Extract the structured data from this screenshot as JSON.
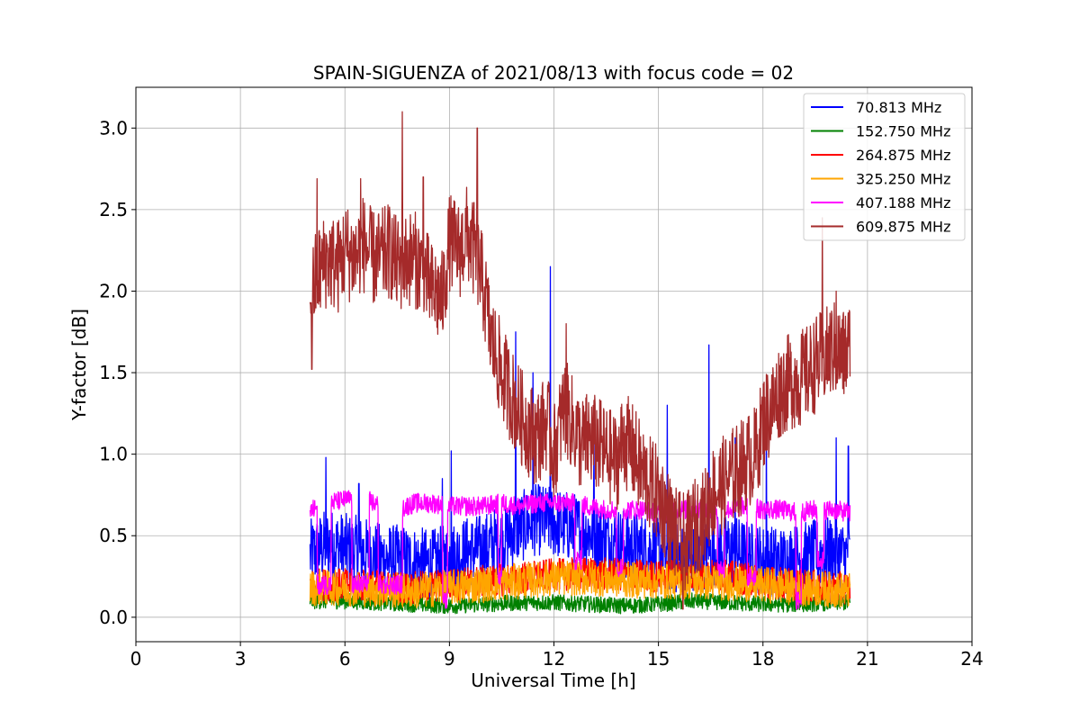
{
  "chart_data": {
    "type": "line",
    "title": "SPAIN-SIGUENZA of 2021/08/13 with focus code = 02",
    "xlabel": "Universal Time [h]",
    "ylabel": "Y-factor [dB]",
    "xlim": [
      0,
      24
    ],
    "ylim": [
      -0.15,
      3.25
    ],
    "xticks": [
      0,
      3,
      6,
      9,
      12,
      15,
      18,
      21,
      24
    ],
    "xtick_labels": [
      "0",
      "3",
      "6",
      "9",
      "12",
      "15",
      "18",
      "21",
      "24"
    ],
    "yticks": [
      0.0,
      0.5,
      1.0,
      1.5,
      2.0,
      2.5,
      3.0
    ],
    "ytick_labels": [
      "0.0",
      "0.5",
      "1.0",
      "1.5",
      "2.0",
      "2.5",
      "3.0"
    ],
    "grid": true,
    "legend_position": "top-right",
    "series": [
      {
        "name": "70.813 MHz",
        "label": " 70.813 MHz",
        "color": "#0000ff",
        "x": [
          5.0,
          5.5,
          6.0,
          6.5,
          7.0,
          7.5,
          8.0,
          8.5,
          9.0,
          9.5,
          10.0,
          10.5,
          11.0,
          11.5,
          12.0,
          12.5,
          13.0,
          13.5,
          14.0,
          14.5,
          15.0,
          15.5,
          16.0,
          16.5,
          17.0,
          17.5,
          18.0,
          18.5,
          19.0,
          19.5,
          20.0,
          20.5
        ],
        "y": [
          0.38,
          0.45,
          0.42,
          0.4,
          0.36,
          0.35,
          0.34,
          0.32,
          0.36,
          0.4,
          0.42,
          0.48,
          0.55,
          0.6,
          0.58,
          0.55,
          0.52,
          0.48,
          0.45,
          0.42,
          0.4,
          0.36,
          0.35,
          0.4,
          0.42,
          0.38,
          0.35,
          0.34,
          0.36,
          0.38,
          0.4,
          0.36
        ],
        "noise": 0.22,
        "spikes": [
          [
            5.45,
            0.98
          ],
          [
            6.4,
            0.82
          ],
          [
            8.8,
            0.85
          ],
          [
            9.05,
            1.02
          ],
          [
            10.9,
            1.75
          ],
          [
            11.4,
            1.5
          ],
          [
            11.9,
            2.15
          ],
          [
            13.15,
            1.12
          ],
          [
            15.25,
            1.3
          ],
          [
            16.45,
            1.67
          ],
          [
            17.2,
            1.1
          ],
          [
            18.1,
            1.18
          ],
          [
            20.1,
            1.1
          ],
          [
            20.45,
            1.05
          ]
        ]
      },
      {
        "name": "152.750 MHz",
        "label": "152.750 MHz",
        "color": "#008000",
        "x": [
          5.0,
          6.0,
          7.0,
          8.0,
          9.0,
          10.0,
          11.0,
          12.0,
          13.0,
          14.0,
          15.0,
          16.0,
          17.0,
          18.0,
          19.0,
          20.0,
          20.5
        ],
        "y": [
          0.1,
          0.1,
          0.09,
          0.08,
          0.07,
          0.08,
          0.09,
          0.09,
          0.08,
          0.07,
          0.08,
          0.1,
          0.09,
          0.08,
          0.08,
          0.09,
          0.09
        ],
        "noise": 0.05,
        "spikes": []
      },
      {
        "name": "264.875 MHz",
        "label": "264.875 MHz",
        "color": "#ff0000",
        "x": [
          5.0,
          6.0,
          7.0,
          8.0,
          9.0,
          10.0,
          11.0,
          12.0,
          13.0,
          14.0,
          15.0,
          16.0,
          17.0,
          18.0,
          19.0,
          20.0,
          20.5
        ],
        "y": [
          0.2,
          0.2,
          0.19,
          0.18,
          0.2,
          0.22,
          0.24,
          0.26,
          0.27,
          0.26,
          0.25,
          0.26,
          0.25,
          0.22,
          0.2,
          0.18,
          0.18
        ],
        "noise": 0.1,
        "spikes": []
      },
      {
        "name": "325.250 MHz",
        "label": "325.250 MHz",
        "color": "#ffa500",
        "x": [
          5.0,
          6.0,
          7.0,
          8.0,
          9.0,
          10.0,
          11.0,
          12.0,
          13.0,
          14.0,
          15.0,
          16.0,
          17.0,
          18.0,
          19.0,
          20.0,
          20.5
        ],
        "y": [
          0.18,
          0.18,
          0.17,
          0.16,
          0.18,
          0.2,
          0.22,
          0.24,
          0.24,
          0.23,
          0.22,
          0.22,
          0.21,
          0.2,
          0.18,
          0.17,
          0.16
        ],
        "noise": 0.11,
        "spikes": []
      },
      {
        "name": "407.188 MHz",
        "label": "407.188 MHz",
        "color": "#ff00ff",
        "x": [
          5.0,
          5.5,
          6.0,
          6.5,
          7.0,
          7.5,
          8.0,
          8.5,
          9.0,
          9.5,
          10.0,
          10.5,
          11.0,
          11.5,
          12.0,
          12.5,
          13.0,
          13.5,
          14.0,
          14.5,
          15.0,
          15.5,
          16.0,
          16.5,
          17.0,
          17.5,
          18.0,
          18.5,
          19.0,
          19.5,
          20.0,
          20.5
        ],
        "y": [
          0.65,
          0.7,
          0.72,
          0.74,
          0.68,
          0.66,
          0.7,
          0.7,
          0.68,
          0.68,
          0.68,
          0.7,
          0.68,
          0.7,
          0.7,
          0.7,
          0.68,
          0.66,
          0.66,
          0.66,
          0.64,
          0.66,
          0.66,
          0.66,
          0.66,
          0.68,
          0.66,
          0.66,
          0.64,
          0.66,
          0.66,
          0.64
        ],
        "noise": 0.06,
        "dropouts": [
          [
            5.2,
            5.6,
            0.2
          ],
          [
            6.2,
            6.7,
            0.2
          ],
          [
            6.95,
            7.65,
            0.2
          ],
          [
            8.8,
            8.95,
            0.1
          ],
          [
            10.4,
            10.5,
            0.25
          ],
          [
            12.6,
            12.8,
            0.35
          ],
          [
            13.8,
            14.0,
            0.3
          ],
          [
            16.7,
            16.9,
            0.3
          ],
          [
            17.55,
            17.8,
            0.25
          ],
          [
            18.95,
            19.1,
            0.1
          ],
          [
            19.55,
            19.75,
            0.35
          ]
        ],
        "spikes": []
      },
      {
        "name": "609.875 MHz",
        "label": "609.875 MHz",
        "color": "#a52a2a",
        "x": [
          5.0,
          5.2,
          5.5,
          5.8,
          6.0,
          6.3,
          6.5,
          6.8,
          7.0,
          7.3,
          7.5,
          7.8,
          8.0,
          8.3,
          8.5,
          8.8,
          9.0,
          9.3,
          9.5,
          9.8,
          10.0,
          10.2,
          10.5,
          10.8,
          11.0,
          11.3,
          11.5,
          11.8,
          12.0,
          12.3,
          12.5,
          12.8,
          13.0,
          13.3,
          13.5,
          13.8,
          14.0,
          14.3,
          14.5,
          14.8,
          15.0,
          15.3,
          15.5,
          15.8,
          16.0,
          16.3,
          16.5,
          16.8,
          17.0,
          17.3,
          17.5,
          17.8,
          18.0,
          18.3,
          18.5,
          18.8,
          19.0,
          19.3,
          19.5,
          19.8,
          20.0,
          20.3,
          20.5
        ],
        "y": [
          1.95,
          2.1,
          2.2,
          2.15,
          2.25,
          2.2,
          2.3,
          2.2,
          2.2,
          2.25,
          2.15,
          2.2,
          2.2,
          2.1,
          2.0,
          1.95,
          2.3,
          2.25,
          2.35,
          2.2,
          2.0,
          1.7,
          1.5,
          1.35,
          1.25,
          1.15,
          1.1,
          1.2,
          1.0,
          1.3,
          1.2,
          1.05,
          1.1,
          1.05,
          1.0,
          0.95,
          1.1,
          1.0,
          0.9,
          0.8,
          0.75,
          0.6,
          0.5,
          0.45,
          0.55,
          0.6,
          0.75,
          0.8,
          0.85,
          0.9,
          0.95,
          1.0,
          1.2,
          1.3,
          1.4,
          1.45,
          1.45,
          1.5,
          1.55,
          1.6,
          1.65,
          1.6,
          1.65
        ],
        "noise": 0.3,
        "spikes": [
          [
            5.05,
            1.52
          ],
          [
            5.2,
            2.69
          ],
          [
            6.45,
            2.69
          ],
          [
            7.65,
            3.1
          ],
          [
            8.25,
            2.7
          ],
          [
            9.8,
            3.0
          ],
          [
            10.5,
            1.3
          ],
          [
            12.35,
            1.8
          ],
          [
            15.7,
            0.05
          ],
          [
            19.7,
            2.45
          ],
          [
            20.1,
            2.0
          ]
        ]
      }
    ]
  }
}
